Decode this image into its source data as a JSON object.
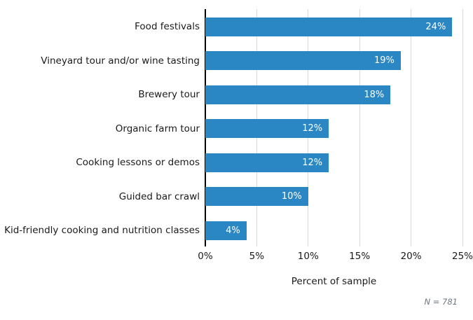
{
  "chart_data": {
    "type": "bar",
    "orientation": "horizontal",
    "title": "",
    "categories": [
      "Food festivals",
      "Vineyard tour and/or wine tasting",
      "Brewery tour",
      "Organic farm tour",
      "Cooking lessons or demos",
      "Guided bar crawl",
      "Kid-friendly cooking and nutrition classes"
    ],
    "values": [
      24,
      19,
      18,
      12,
      12,
      10,
      4
    ],
    "value_labels": [
      "24%",
      "19%",
      "18%",
      "12%",
      "12%",
      "10%",
      "4%"
    ],
    "xlabel": "Percent of sample",
    "ylabel": "",
    "xlim": [
      0,
      25
    ],
    "x_tick_values": [
      0,
      5,
      10,
      15,
      20,
      25
    ],
    "x_tick_labels": [
      "0%",
      "5%",
      "10%",
      "15%",
      "20%",
      "25%"
    ],
    "grid": true,
    "legend": false,
    "note": "N = 781",
    "colors": {
      "bar": "#2b87c4",
      "bar_value_text": "#ffffff",
      "gridline": "#d9d9d9",
      "axis_line": "#000000",
      "text": "#1a1a1a",
      "note_text": "#6d7680"
    }
  }
}
